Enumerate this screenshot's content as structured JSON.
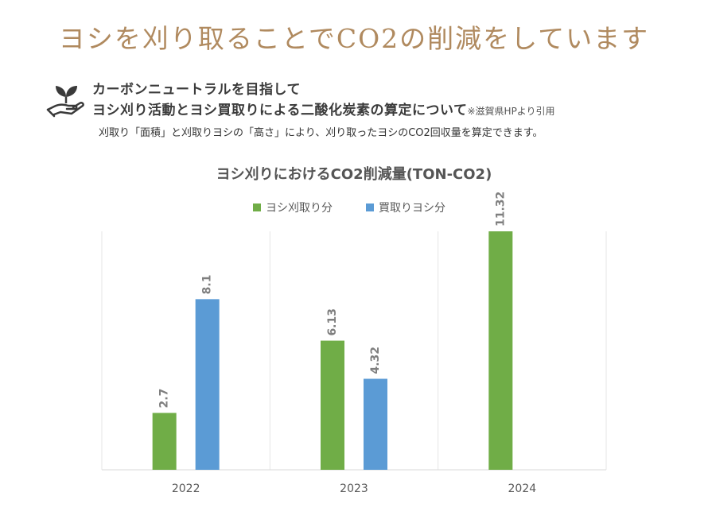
{
  "header": {
    "headline": "ヨシを刈り取ることでCO2の削減をしています",
    "subtitle_line1": "カーボンニュートラルを目指して",
    "subtitle_line2": "ヨシ刈り活動とヨシ買取りによる二酸化炭素の算定について",
    "source_note": "※滋賀県HPより引用",
    "description": "刈取り「面積」と刈取りヨシの「高さ」により、刈り取ったヨシのCO2回収量を算定できます。",
    "icon": "hand-with-sprout-icon"
  },
  "chart_data": {
    "type": "bar",
    "title": "ヨシ刈りにおけるCO2削減量(TON-CO2)",
    "categories": [
      "2022",
      "2023",
      "2024"
    ],
    "series": [
      {
        "name": "ヨシ刈取り分",
        "color": "#70ad47",
        "values": [
          2.7,
          6.13,
          11.32
        ],
        "labels": [
          "2.7",
          "6.13",
          "11.32"
        ]
      },
      {
        "name": "買取りヨシ分",
        "color": "#5b9bd5",
        "values": [
          8.1,
          4.32,
          null
        ],
        "labels": [
          "8.1",
          "4.32",
          ""
        ]
      }
    ],
    "ylim": [
      0,
      12
    ],
    "grid": "vertical-category-separators",
    "legend_position": "top",
    "xlabel": "",
    "ylabel": ""
  }
}
